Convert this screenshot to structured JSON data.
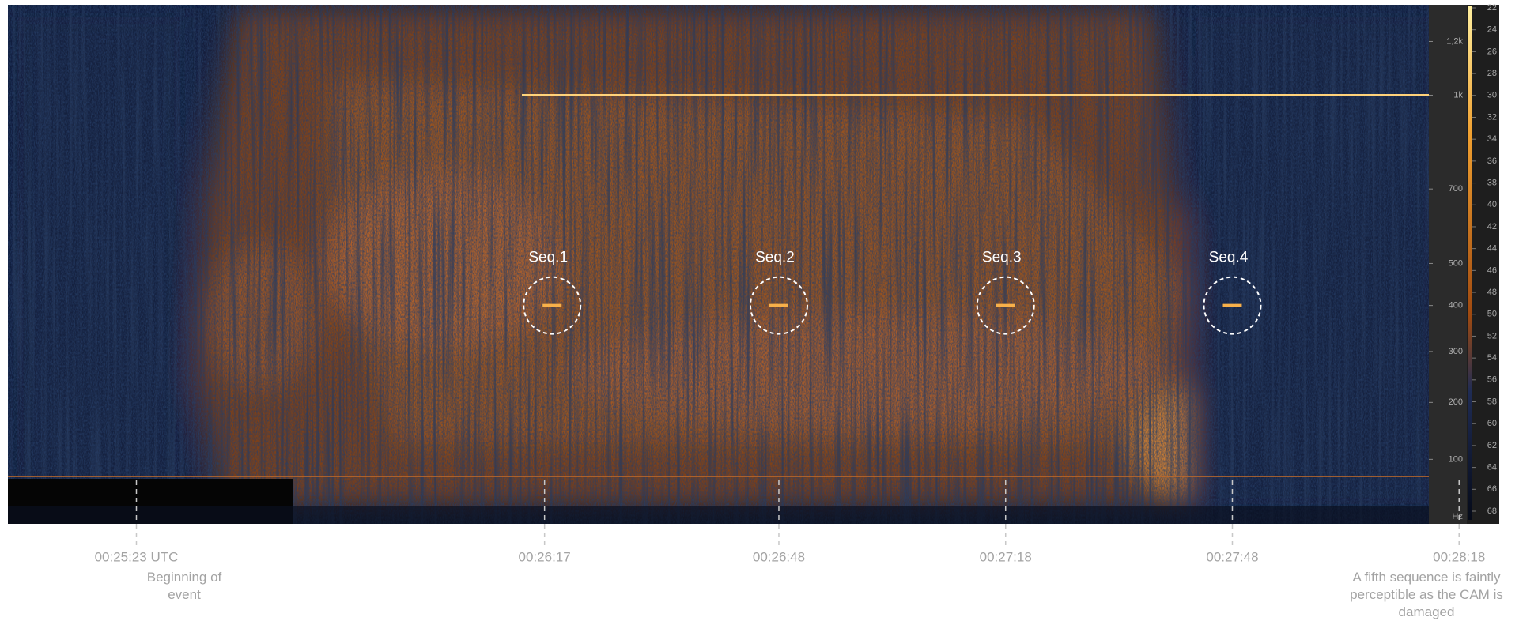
{
  "chart_data": {
    "type": "spectrogram",
    "xlim": [
      1506,
      1694
    ],
    "xticks": [
      {
        "value": 1523,
        "label": "00:25:23 UTC"
      },
      {
        "value": 1577,
        "label": "00:26:17"
      },
      {
        "value": 1608,
        "label": "00:26:48"
      },
      {
        "value": 1638,
        "label": "00:27:18"
      },
      {
        "value": 1668,
        "label": "00:27:48"
      },
      {
        "value": 1698,
        "label": "00:28:18"
      }
    ],
    "notes": [
      "Beginning of event",
      "A fifth sequence is faintly perceptible as the CAM is damaged"
    ],
    "yscale": "mel",
    "ylim": [
      0,
      1350
    ],
    "yticks": [
      {
        "value": 1200,
        "label": "1,2k"
      },
      {
        "value": 1000,
        "label": "1k"
      },
      700,
      500,
      400,
      300,
      200,
      100
    ],
    "y_unit": "Hz",
    "colorbar": {
      "lim": [
        22,
        68
      ],
      "ticks": [
        22,
        24,
        26,
        28,
        30,
        32,
        34,
        36,
        38,
        40,
        42,
        44,
        46,
        48,
        50,
        52,
        54,
        56,
        58,
        60,
        62,
        64,
        66,
        68
      ]
    },
    "tone": {
      "freq": 1000,
      "start": 1574,
      "color": "#ffd27a"
    },
    "sequences": [
      {
        "label": "Seq.1",
        "time": 1578,
        "freq": 400
      },
      {
        "label": "Seq.2",
        "time": 1608,
        "freq": 400
      },
      {
        "label": "Seq.3",
        "time": 1638,
        "freq": 400
      },
      {
        "label": "Seq.4",
        "time": 1668,
        "freq": 400
      }
    ],
    "sequence_color": "#ffffff"
  }
}
